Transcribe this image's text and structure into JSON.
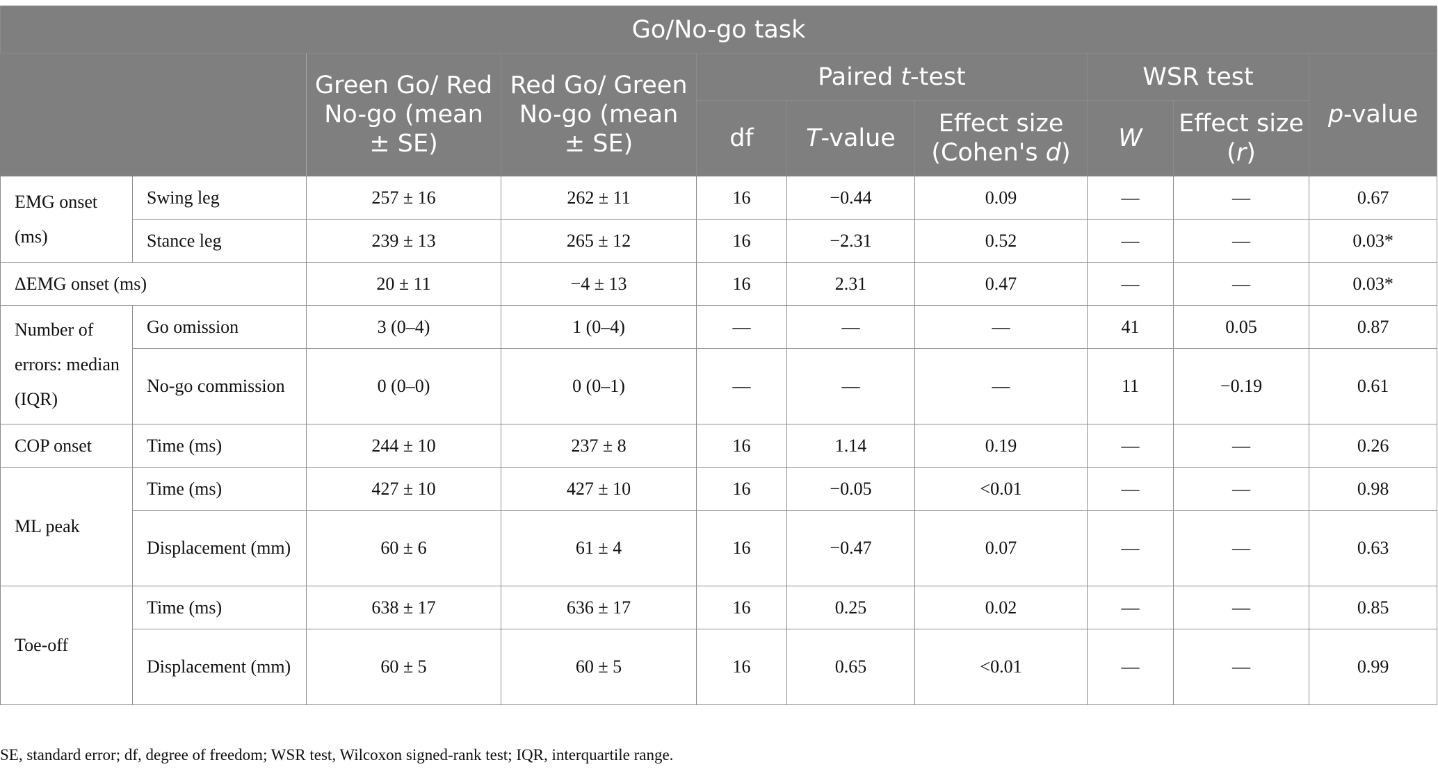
{
  "table": {
    "title": "Go/No-go task",
    "headers": {
      "green_go": "Green Go/ Red No-go (mean ± SE)",
      "red_go": "Red Go/ Green No-go (mean ± SE)",
      "paired_pre": "Paired ",
      "paired_t": "t",
      "paired_post": "-test",
      "wsr": "WSR test",
      "p_it": "p",
      "p_rest": "-value",
      "df": "df",
      "t_it": "T",
      "t_rest": "-value",
      "cohen_pre": "Effect size (Cohen's ",
      "cohen_d": "d",
      "cohen_post": ")",
      "w": "W",
      "r_pre": "Effect size (",
      "r_it": "r",
      "r_post": ")"
    },
    "groups": {
      "emg_onset": "EMG onset (ms)",
      "delta_emg": "ΔEMG onset (ms)",
      "errors": "Number of errors: median (IQR)",
      "cop_onset": "COP onset",
      "ml_peak": "ML peak",
      "toe_off": "Toe-off"
    },
    "rows": [
      {
        "sub": "Swing leg",
        "green": "257 ± 16",
        "red": "262 ± 11",
        "df": "16",
        "t": "−0.44",
        "d": "0.09",
        "w": "—",
        "r": "—",
        "p": "0.67"
      },
      {
        "sub": "Stance leg",
        "green": "239 ± 13",
        "red": "265 ± 12",
        "df": "16",
        "t": "−2.31",
        "d": "0.52",
        "w": "—",
        "r": "—",
        "p": "0.03*"
      },
      {
        "sub": "",
        "green": "20 ± 11",
        "red": "−4 ± 13",
        "df": "16",
        "t": "2.31",
        "d": "0.47",
        "w": "—",
        "r": "—",
        "p": "0.03*"
      },
      {
        "sub": "Go omission",
        "green": "3 (0–4)",
        "red": "1 (0–4)",
        "df": "—",
        "t": "—",
        "d": "—",
        "w": "41",
        "r": "0.05",
        "p": "0.87"
      },
      {
        "sub": "No-go commission",
        "green": "0 (0–0)",
        "red": "0 (0–1)",
        "df": "—",
        "t": "—",
        "d": "—",
        "w": "11",
        "r": "−0.19",
        "p": "0.61"
      },
      {
        "sub": "Time (ms)",
        "green": "244 ± 10",
        "red": "237 ± 8",
        "df": "16",
        "t": "1.14",
        "d": "0.19",
        "w": "—",
        "r": "—",
        "p": "0.26"
      },
      {
        "sub": "Time (ms)",
        "green": "427 ± 10",
        "red": "427 ± 10",
        "df": "16",
        "t": "−0.05",
        "d": "<0.01",
        "w": "—",
        "r": "—",
        "p": "0.98"
      },
      {
        "sub": "Displacement (mm)",
        "green": "60 ± 6",
        "red": "61 ± 4",
        "df": "16",
        "t": "−0.47",
        "d": "0.07",
        "w": "—",
        "r": "—",
        "p": "0.63"
      },
      {
        "sub": "Time (ms)",
        "green": "638 ± 17",
        "red": "636 ± 17",
        "df": "16",
        "t": "0.25",
        "d": "0.02",
        "w": "—",
        "r": "—",
        "p": "0.85"
      },
      {
        "sub": "Displacement (mm)",
        "green": "60 ± 5",
        "red": "60 ± 5",
        "df": "16",
        "t": "0.65",
        "d": "<0.01",
        "w": "—",
        "r": "—",
        "p": "0.99"
      }
    ],
    "footnote": "SE, standard error; df, degree of freedom; WSR test, Wilcoxon signed-rank test; IQR, interquartile range."
  }
}
